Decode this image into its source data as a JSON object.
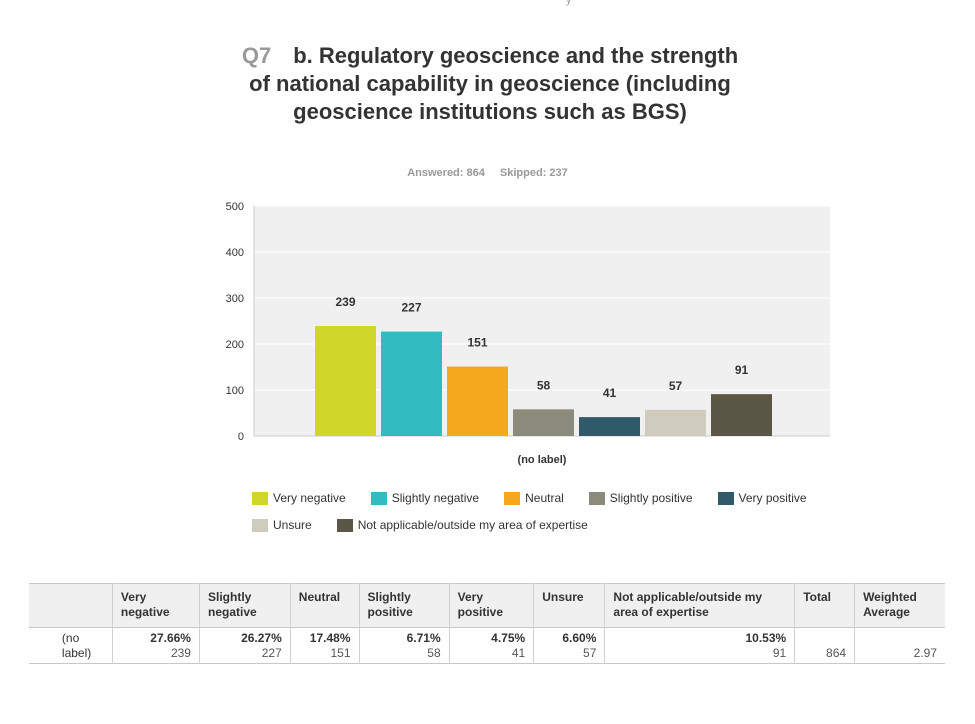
{
  "question": {
    "number": "Q7",
    "title": "b. Regulatory geoscience and the strength of national capability in geoscience (including geoscience institutions such as BGS)",
    "answered": "Answered: 864",
    "skipped": "Skipped: 237"
  },
  "chart_data": {
    "type": "bar",
    "categories": [
      "Very negative",
      "Slightly negative",
      "Neutral",
      "Slightly positive",
      "Very positive",
      "Unsure",
      "Not applicable/outside my area of expertise"
    ],
    "values": [
      239,
      227,
      151,
      58,
      41,
      57,
      91
    ],
    "colors": [
      "#cfd627",
      "#32bcc2",
      "#f4a91c",
      "#8b8b7b",
      "#305a6a",
      "#d0ccbd",
      "#5a5747"
    ],
    "xlabel": "(no label)",
    "ylabel": "",
    "ylim": [
      0,
      500
    ],
    "yticks": [
      0,
      100,
      200,
      300,
      400,
      500
    ],
    "legend": [
      "Very negative",
      "Slightly negative",
      "Neutral",
      "Slightly positive",
      "Very positive",
      "Unsure",
      "Not applicable/outside my area of expertise"
    ]
  },
  "table": {
    "headers": [
      "",
      "Very negative",
      "Slightly negative",
      "Neutral",
      "Slightly positive",
      "Very positive",
      "Unsure",
      "Not applicable/outside my area of expertise",
      "Total",
      "Weighted Average"
    ],
    "row_label": "(no label)",
    "percents": [
      "27.66%",
      "26.27%",
      "17.48%",
      "6.71%",
      "4.75%",
      "6.60%",
      "10.53%"
    ],
    "counts": [
      "239",
      "227",
      "151",
      "58",
      "41",
      "57",
      "91"
    ],
    "total": "864",
    "weighted_average": "2.97"
  }
}
